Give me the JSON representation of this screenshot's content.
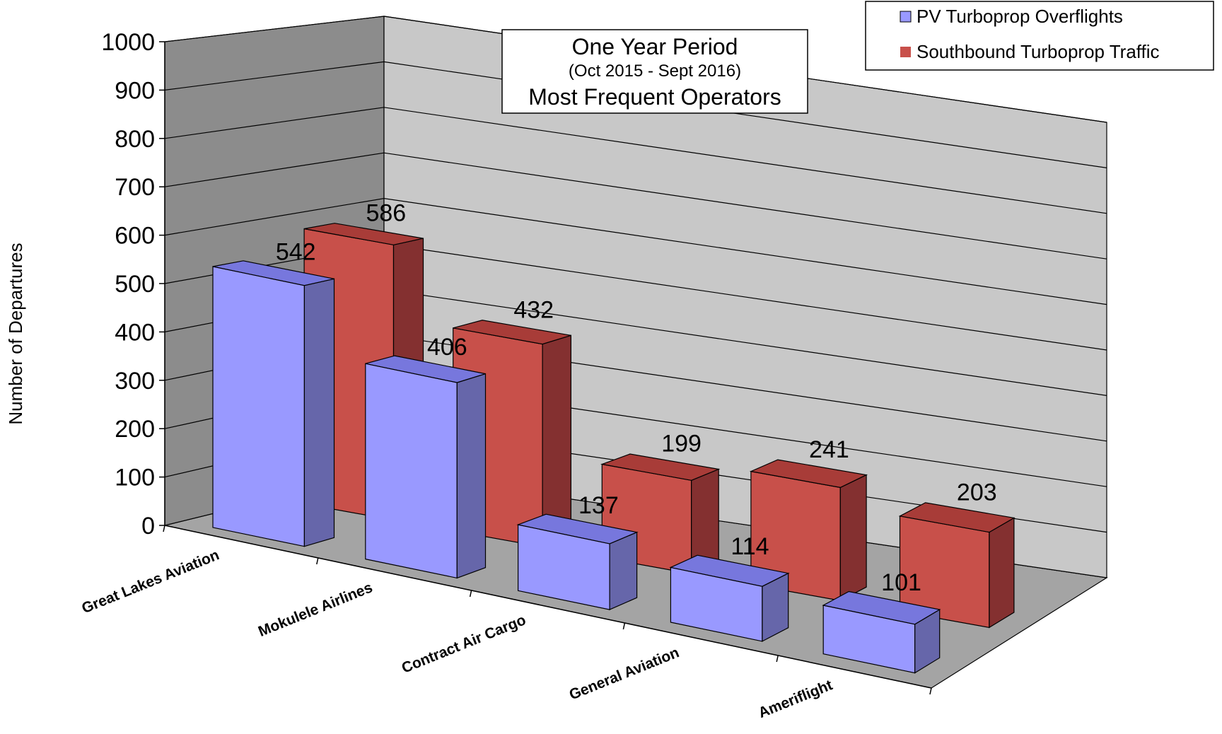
{
  "chart_data": {
    "type": "bar",
    "title": "One Year Period",
    "subtitle": "(Oct 2015 - Sept 2016)",
    "title_line3": "Most Frequent Operators",
    "ylabel": "Number of Departures",
    "xlabel": "",
    "ylim": [
      0,
      1000
    ],
    "yticks": [
      "0",
      "100",
      "200",
      "300",
      "400",
      "500",
      "600",
      "700",
      "800",
      "900",
      "1000"
    ],
    "categories": [
      "Great Lakes Aviation",
      "Mokulele Airlines",
      "Contract Air Cargo",
      "General Aviation",
      "Ameriflight"
    ],
    "series": [
      {
        "name": "PV Turboprop Overflights",
        "values": [
          542,
          406,
          137,
          114,
          101
        ],
        "color": "#9999ff",
        "side_color": "#6666aa",
        "top_color": "#7777dd"
      },
      {
        "name": "Southbound Turboprop Traffic",
        "values": [
          586,
          432,
          199,
          241,
          203
        ],
        "color": "#c8504a",
        "side_color": "#843030",
        "top_color": "#a83c38"
      }
    ],
    "grid": true,
    "legend_position": "top-right",
    "style": "3d-clustered-depth"
  }
}
